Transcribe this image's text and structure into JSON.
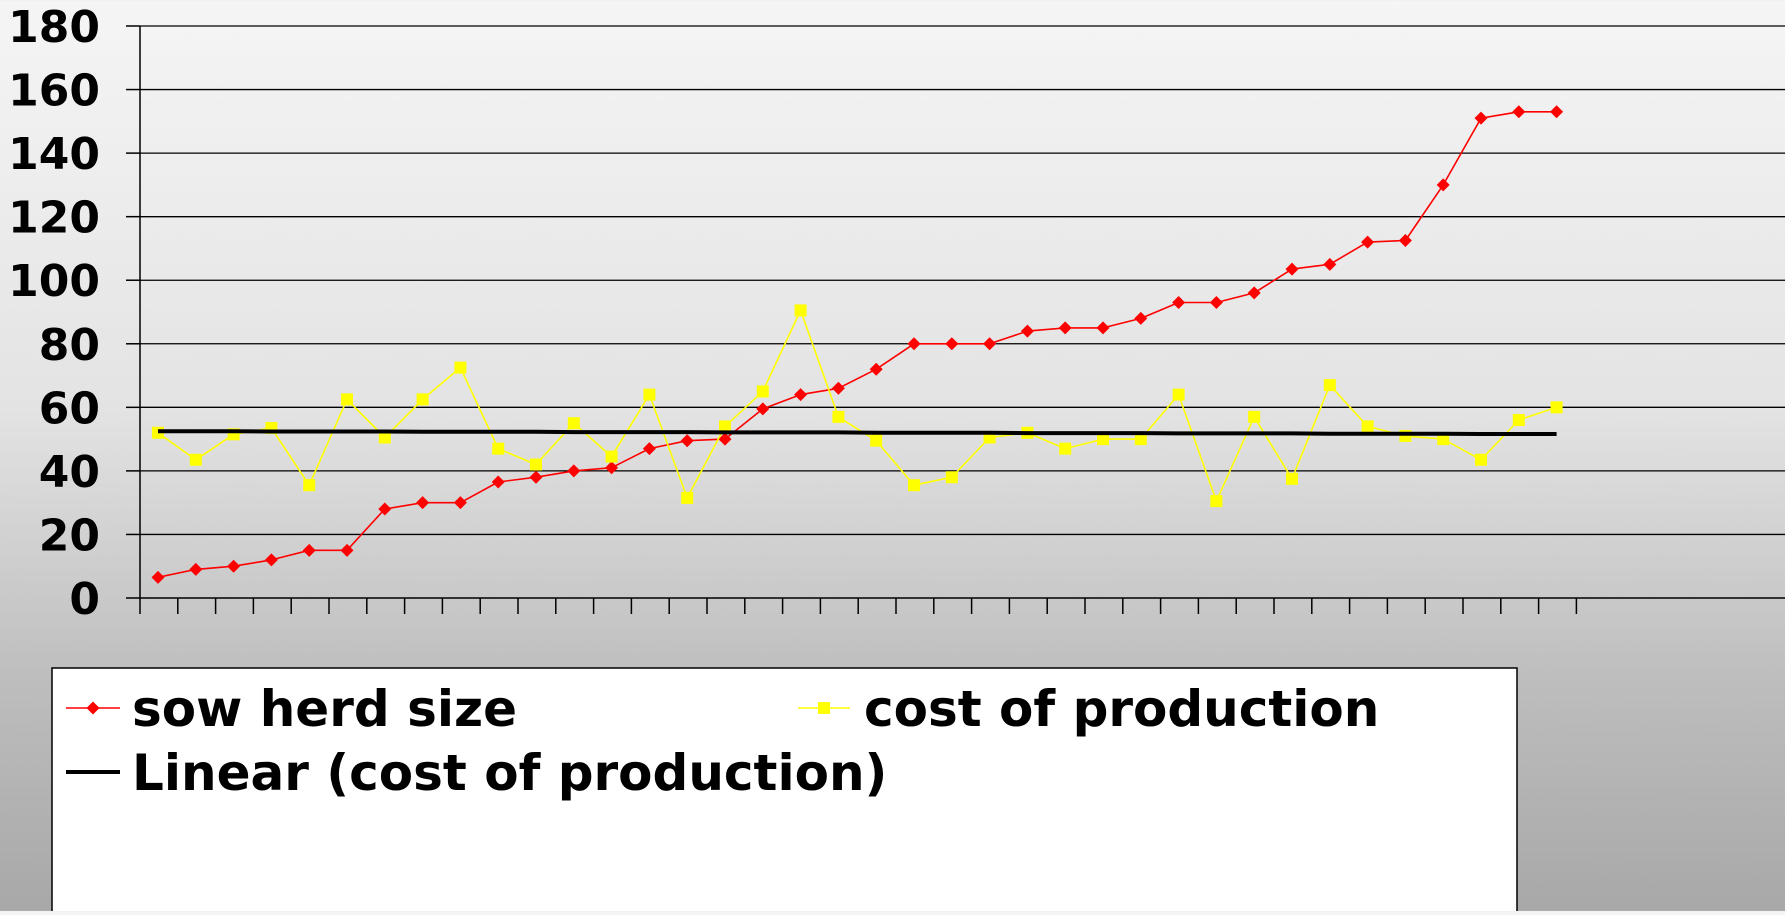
{
  "chart_data": {
    "type": "line",
    "title": "",
    "xlabel": "",
    "ylabel": "",
    "ylim": [
      0,
      180
    ],
    "yticks": [
      0,
      20,
      40,
      60,
      80,
      100,
      120,
      140,
      160,
      180
    ],
    "grid": true,
    "legend_position": "bottom",
    "x": [
      1,
      2,
      3,
      4,
      5,
      6,
      7,
      8,
      9,
      10,
      11,
      12,
      13,
      14,
      15,
      16,
      17,
      18,
      19,
      20,
      21,
      22,
      23,
      24,
      25,
      26,
      27,
      28,
      29,
      30,
      31,
      32,
      33,
      34,
      35,
      36,
      37,
      38
    ],
    "series": [
      {
        "name": "sow herd size",
        "color": "#ff0000",
        "marker": "diamond",
        "values": [
          6.5,
          9,
          10,
          12,
          15,
          15,
          28,
          30,
          30,
          36.5,
          38,
          40,
          41,
          47,
          49.5,
          50,
          59.5,
          64,
          66,
          72,
          80,
          80,
          80,
          84,
          85,
          85,
          88,
          93,
          93,
          96,
          103.5,
          105,
          112,
          112.5,
          130,
          151,
          153,
          153
        ]
      },
      {
        "name": "cost of production",
        "color": "#ffff00",
        "marker": "square",
        "values": [
          52,
          43.5,
          51.5,
          53.5,
          35.5,
          62.5,
          50.5,
          62.5,
          72.5,
          47,
          42,
          55,
          44.5,
          64,
          31.5,
          54,
          65,
          90.5,
          57,
          49.5,
          35.5,
          38,
          50.5,
          52,
          47,
          50,
          50,
          64,
          30.5,
          57,
          37.5,
          67,
          54,
          51,
          50,
          43.5,
          56,
          60
        ]
      },
      {
        "name": "Linear (cost of production)",
        "color": "#000000",
        "marker": "none",
        "trendline": true,
        "values": [
          52.5,
          52.5,
          52.5,
          52.4,
          52.4,
          52.4,
          52.4,
          52.3,
          52.3,
          52.3,
          52.3,
          52.2,
          52.2,
          52.2,
          52.2,
          52.1,
          52.1,
          52.1,
          52.1,
          52.0,
          52.0,
          52.0,
          52.0,
          51.9,
          51.9,
          51.9,
          51.9,
          51.8,
          51.8,
          51.8,
          51.8,
          51.7,
          51.7,
          51.7,
          51.7,
          51.6,
          51.6,
          51.6
        ]
      }
    ]
  }
}
